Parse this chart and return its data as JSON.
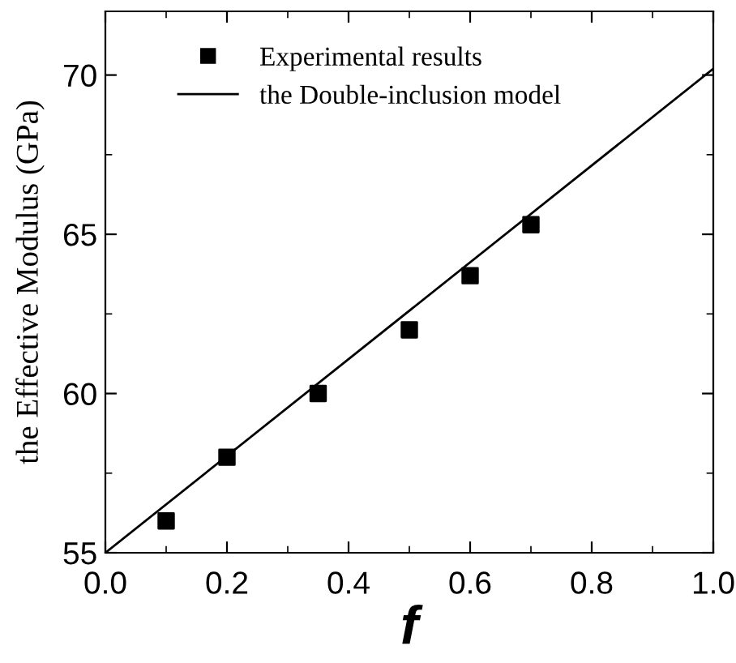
{
  "chart_data": {
    "type": "scatter",
    "xlabel": "f",
    "ylabel": "the Effective Modulus (GPa)",
    "series": [
      {
        "name": "Experimental results",
        "color": "#000000",
        "marker": "square",
        "x": [
          0.1,
          0.2,
          0.35,
          0.5,
          0.6,
          0.7
        ],
        "values": [
          56.0,
          58.0,
          60.0,
          62.0,
          63.7,
          65.3
        ]
      },
      {
        "name": "the Double-inclusion model",
        "type": "line",
        "color": "#000000",
        "marker": "none",
        "line_style": "solid",
        "x": [
          0,
          1
        ],
        "values": [
          55,
          70.2
        ]
      }
    ],
    "xlim": [
      0,
      1
    ],
    "ylim": [
      55,
      72
    ],
    "xticks": [
      {
        "value": 0,
        "label": "0.0"
      },
      0.2,
      0.4,
      0.6,
      0.8,
      {
        "value": 1,
        "label": "1.0"
      }
    ],
    "yticks": [
      55,
      60,
      65,
      70
    ],
    "grid": false,
    "legend": "top left"
  }
}
